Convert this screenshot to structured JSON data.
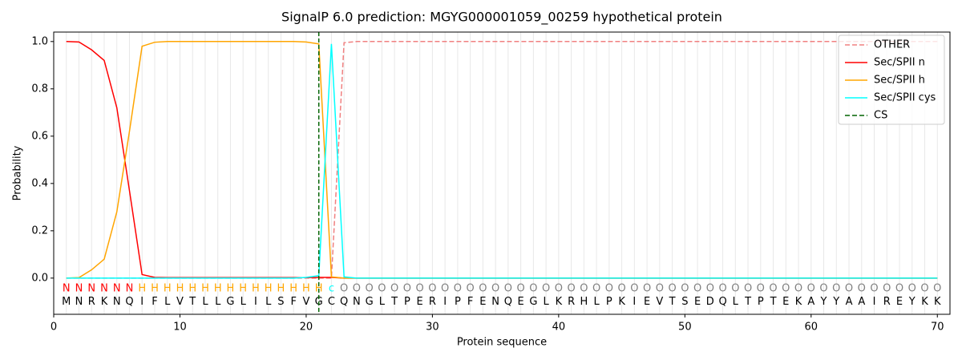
{
  "chart_data": {
    "type": "line",
    "title": "SignalP 6.0 prediction: MGYG000001059_00259 hypothetical protein",
    "xlabel": "Protein sequence",
    "ylabel": "Probability",
    "x": [
      1,
      2,
      3,
      4,
      5,
      6,
      7,
      8,
      9,
      10,
      11,
      12,
      13,
      14,
      15,
      16,
      17,
      18,
      19,
      20,
      21,
      22,
      23,
      24,
      25,
      26,
      27,
      28,
      29,
      30,
      31,
      32,
      33,
      34,
      35,
      36,
      37,
      38,
      39,
      40,
      41,
      42,
      43,
      44,
      45,
      46,
      47,
      48,
      49,
      50,
      51,
      52,
      53,
      54,
      55,
      56,
      57,
      58,
      59,
      60,
      61,
      62,
      63,
      64,
      65,
      66,
      67,
      68,
      69,
      70
    ],
    "sequence": [
      "M",
      "N",
      "R",
      "K",
      "N",
      "Q",
      "I",
      "F",
      "L",
      "V",
      "T",
      "L",
      "L",
      "G",
      "L",
      "I",
      "L",
      "S",
      "F",
      "V",
      "G",
      "C",
      "Q",
      "N",
      "G",
      "L",
      "T",
      "P",
      "E",
      "R",
      "I",
      "P",
      "F",
      "E",
      "N",
      "Q",
      "E",
      "G",
      "L",
      "K",
      "R",
      "H",
      "L",
      "P",
      "K",
      "I",
      "E",
      "V",
      "T",
      "S",
      "E",
      "D",
      "Q",
      "L",
      "T",
      "P",
      "T",
      "E",
      "K",
      "A",
      "Y",
      "Y",
      "A",
      "A",
      "I",
      "R",
      "E",
      "Y",
      "K",
      "K"
    ],
    "regions": [
      "N",
      "N",
      "N",
      "N",
      "N",
      "N",
      "H",
      "H",
      "H",
      "H",
      "H",
      "H",
      "H",
      "H",
      "H",
      "H",
      "H",
      "H",
      "H",
      "H",
      "H",
      "c",
      "O",
      "O",
      "O",
      "O",
      "O",
      "O",
      "O",
      "O",
      "O",
      "O",
      "O",
      "O",
      "O",
      "O",
      "O",
      "O",
      "O",
      "O",
      "O",
      "O",
      "O",
      "O",
      "O",
      "O",
      "O",
      "O",
      "O",
      "O",
      "O",
      "O",
      "O",
      "O",
      "O",
      "O",
      "O",
      "O",
      "O",
      "O",
      "O",
      "O",
      "O",
      "O",
      "O",
      "O",
      "O",
      "O",
      "O",
      "O"
    ],
    "region_colors": {
      "N": "#ff0000",
      "H": "#ffa500",
      "c": "#00ffff",
      "O": "#808080"
    },
    "series": [
      {
        "name": "OTHER",
        "color": "#f08080",
        "dash": true,
        "values": [
          0,
          0,
          0,
          0,
          0,
          0,
          0,
          0,
          0,
          0,
          0,
          0,
          0,
          0,
          0,
          0,
          0,
          0,
          0,
          0,
          0,
          0,
          0.995,
          1,
          1,
          1,
          1,
          1,
          1,
          1,
          1,
          1,
          1,
          1,
          1,
          1,
          1,
          1,
          1,
          1,
          1,
          1,
          1,
          1,
          1,
          1,
          1,
          1,
          1,
          1,
          1,
          1,
          1,
          1,
          1,
          1,
          1,
          1,
          1,
          1,
          1,
          1,
          1,
          1,
          1,
          1,
          1,
          1,
          1,
          1
        ]
      },
      {
        "name": "Sec/SPII n",
        "color": "#ff0000",
        "values": [
          1,
          0.998,
          0.965,
          0.92,
          0.72,
          0.37,
          0.015,
          0.003,
          0.002,
          0.002,
          0.002,
          0.002,
          0.002,
          0.002,
          0.002,
          0.002,
          0.002,
          0.002,
          0.002,
          0.002,
          0.003,
          0.003,
          0,
          0,
          0,
          0,
          0,
          0,
          0,
          0,
          0,
          0,
          0,
          0,
          0,
          0,
          0,
          0,
          0,
          0,
          0,
          0,
          0,
          0,
          0,
          0,
          0,
          0,
          0,
          0,
          0,
          0,
          0,
          0,
          0,
          0,
          0,
          0,
          0,
          0,
          0,
          0,
          0,
          0,
          0,
          0,
          0,
          0,
          0,
          0
        ]
      },
      {
        "name": "Sec/SPII h",
        "color": "#ffa500",
        "values": [
          0,
          0.002,
          0.035,
          0.08,
          0.28,
          0.62,
          0.98,
          0.997,
          1,
          1,
          1,
          1,
          1,
          1,
          1,
          1,
          1,
          1,
          1,
          0.998,
          0.99,
          0.005,
          0,
          0,
          0,
          0,
          0,
          0,
          0,
          0,
          0,
          0,
          0,
          0,
          0,
          0,
          0,
          0,
          0,
          0,
          0,
          0,
          0,
          0,
          0,
          0,
          0,
          0,
          0,
          0,
          0,
          0,
          0,
          0,
          0,
          0,
          0,
          0,
          0,
          0,
          0,
          0,
          0,
          0,
          0,
          0,
          0,
          0,
          0,
          0
        ]
      },
      {
        "name": "Sec/SPII cys",
        "color": "#00ffff",
        "values": [
          0,
          0,
          0,
          0,
          0,
          0,
          0,
          0,
          0,
          0,
          0,
          0,
          0,
          0,
          0,
          0,
          0,
          0,
          0,
          0.003,
          0.01,
          0.99,
          0.005,
          0,
          0,
          0,
          0,
          0,
          0,
          0,
          0,
          0,
          0,
          0,
          0,
          0,
          0,
          0,
          0,
          0,
          0,
          0,
          0,
          0,
          0,
          0,
          0,
          0,
          0,
          0,
          0,
          0,
          0,
          0,
          0,
          0,
          0,
          0,
          0,
          0,
          0,
          0,
          0,
          0,
          0,
          0,
          0,
          0,
          0,
          0
        ]
      }
    ],
    "cs": {
      "name": "CS",
      "x": 21,
      "color": "#006400"
    },
    "xlim": [
      0,
      71
    ],
    "xticks": [
      0,
      10,
      20,
      30,
      40,
      50,
      60,
      70
    ],
    "ylim": [
      -0.153,
      1.04
    ],
    "yticks": [
      {
        "value": 0,
        "label": "0.0"
      },
      {
        "value": 0.2,
        "label": "0.2"
      },
      {
        "value": 0.4,
        "label": "0.4"
      },
      {
        "value": 0.6,
        "label": "0.6"
      },
      {
        "value": 0.8,
        "label": "0.8"
      },
      {
        "value": 1,
        "label": "1.0"
      }
    ],
    "legend": "upper right"
  }
}
